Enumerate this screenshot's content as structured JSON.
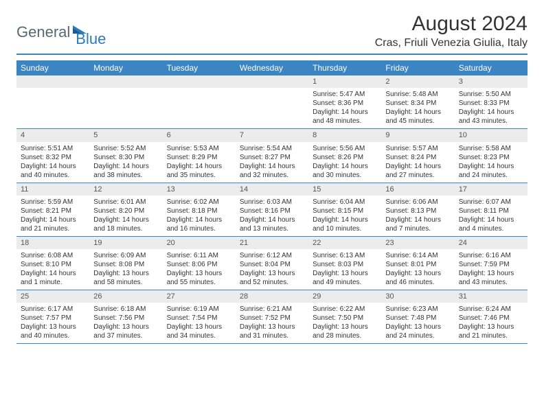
{
  "brand": {
    "part1": "General",
    "part2": "Blue"
  },
  "title": "August 2024",
  "location": "Cras, Friuli Venezia Giulia, Italy",
  "colors": {
    "header_bar": "#3b85c3",
    "daynum_bg": "#ececec",
    "text": "#333333",
    "logo_gray": "#5a6770",
    "logo_blue": "#2b7bbd"
  },
  "day_names": [
    "Sunday",
    "Monday",
    "Tuesday",
    "Wednesday",
    "Thursday",
    "Friday",
    "Saturday"
  ],
  "weeks": [
    [
      null,
      null,
      null,
      null,
      {
        "n": "1",
        "sr": "Sunrise: 5:47 AM",
        "ss": "Sunset: 8:36 PM",
        "d1": "Daylight: 14 hours",
        "d2": "and 48 minutes."
      },
      {
        "n": "2",
        "sr": "Sunrise: 5:48 AM",
        "ss": "Sunset: 8:34 PM",
        "d1": "Daylight: 14 hours",
        "d2": "and 45 minutes."
      },
      {
        "n": "3",
        "sr": "Sunrise: 5:50 AM",
        "ss": "Sunset: 8:33 PM",
        "d1": "Daylight: 14 hours",
        "d2": "and 43 minutes."
      }
    ],
    [
      {
        "n": "4",
        "sr": "Sunrise: 5:51 AM",
        "ss": "Sunset: 8:32 PM",
        "d1": "Daylight: 14 hours",
        "d2": "and 40 minutes."
      },
      {
        "n": "5",
        "sr": "Sunrise: 5:52 AM",
        "ss": "Sunset: 8:30 PM",
        "d1": "Daylight: 14 hours",
        "d2": "and 38 minutes."
      },
      {
        "n": "6",
        "sr": "Sunrise: 5:53 AM",
        "ss": "Sunset: 8:29 PM",
        "d1": "Daylight: 14 hours",
        "d2": "and 35 minutes."
      },
      {
        "n": "7",
        "sr": "Sunrise: 5:54 AM",
        "ss": "Sunset: 8:27 PM",
        "d1": "Daylight: 14 hours",
        "d2": "and 32 minutes."
      },
      {
        "n": "8",
        "sr": "Sunrise: 5:56 AM",
        "ss": "Sunset: 8:26 PM",
        "d1": "Daylight: 14 hours",
        "d2": "and 30 minutes."
      },
      {
        "n": "9",
        "sr": "Sunrise: 5:57 AM",
        "ss": "Sunset: 8:24 PM",
        "d1": "Daylight: 14 hours",
        "d2": "and 27 minutes."
      },
      {
        "n": "10",
        "sr": "Sunrise: 5:58 AM",
        "ss": "Sunset: 8:23 PM",
        "d1": "Daylight: 14 hours",
        "d2": "and 24 minutes."
      }
    ],
    [
      {
        "n": "11",
        "sr": "Sunrise: 5:59 AM",
        "ss": "Sunset: 8:21 PM",
        "d1": "Daylight: 14 hours",
        "d2": "and 21 minutes."
      },
      {
        "n": "12",
        "sr": "Sunrise: 6:01 AM",
        "ss": "Sunset: 8:20 PM",
        "d1": "Daylight: 14 hours",
        "d2": "and 18 minutes."
      },
      {
        "n": "13",
        "sr": "Sunrise: 6:02 AM",
        "ss": "Sunset: 8:18 PM",
        "d1": "Daylight: 14 hours",
        "d2": "and 16 minutes."
      },
      {
        "n": "14",
        "sr": "Sunrise: 6:03 AM",
        "ss": "Sunset: 8:16 PM",
        "d1": "Daylight: 14 hours",
        "d2": "and 13 minutes."
      },
      {
        "n": "15",
        "sr": "Sunrise: 6:04 AM",
        "ss": "Sunset: 8:15 PM",
        "d1": "Daylight: 14 hours",
        "d2": "and 10 minutes."
      },
      {
        "n": "16",
        "sr": "Sunrise: 6:06 AM",
        "ss": "Sunset: 8:13 PM",
        "d1": "Daylight: 14 hours",
        "d2": "and 7 minutes."
      },
      {
        "n": "17",
        "sr": "Sunrise: 6:07 AM",
        "ss": "Sunset: 8:11 PM",
        "d1": "Daylight: 14 hours",
        "d2": "and 4 minutes."
      }
    ],
    [
      {
        "n": "18",
        "sr": "Sunrise: 6:08 AM",
        "ss": "Sunset: 8:10 PM",
        "d1": "Daylight: 14 hours",
        "d2": "and 1 minute."
      },
      {
        "n": "19",
        "sr": "Sunrise: 6:09 AM",
        "ss": "Sunset: 8:08 PM",
        "d1": "Daylight: 13 hours",
        "d2": "and 58 minutes."
      },
      {
        "n": "20",
        "sr": "Sunrise: 6:11 AM",
        "ss": "Sunset: 8:06 PM",
        "d1": "Daylight: 13 hours",
        "d2": "and 55 minutes."
      },
      {
        "n": "21",
        "sr": "Sunrise: 6:12 AM",
        "ss": "Sunset: 8:04 PM",
        "d1": "Daylight: 13 hours",
        "d2": "and 52 minutes."
      },
      {
        "n": "22",
        "sr": "Sunrise: 6:13 AM",
        "ss": "Sunset: 8:03 PM",
        "d1": "Daylight: 13 hours",
        "d2": "and 49 minutes."
      },
      {
        "n": "23",
        "sr": "Sunrise: 6:14 AM",
        "ss": "Sunset: 8:01 PM",
        "d1": "Daylight: 13 hours",
        "d2": "and 46 minutes."
      },
      {
        "n": "24",
        "sr": "Sunrise: 6:16 AM",
        "ss": "Sunset: 7:59 PM",
        "d1": "Daylight: 13 hours",
        "d2": "and 43 minutes."
      }
    ],
    [
      {
        "n": "25",
        "sr": "Sunrise: 6:17 AM",
        "ss": "Sunset: 7:57 PM",
        "d1": "Daylight: 13 hours",
        "d2": "and 40 minutes."
      },
      {
        "n": "26",
        "sr": "Sunrise: 6:18 AM",
        "ss": "Sunset: 7:56 PM",
        "d1": "Daylight: 13 hours",
        "d2": "and 37 minutes."
      },
      {
        "n": "27",
        "sr": "Sunrise: 6:19 AM",
        "ss": "Sunset: 7:54 PM",
        "d1": "Daylight: 13 hours",
        "d2": "and 34 minutes."
      },
      {
        "n": "28",
        "sr": "Sunrise: 6:21 AM",
        "ss": "Sunset: 7:52 PM",
        "d1": "Daylight: 13 hours",
        "d2": "and 31 minutes."
      },
      {
        "n": "29",
        "sr": "Sunrise: 6:22 AM",
        "ss": "Sunset: 7:50 PM",
        "d1": "Daylight: 13 hours",
        "d2": "and 28 minutes."
      },
      {
        "n": "30",
        "sr": "Sunrise: 6:23 AM",
        "ss": "Sunset: 7:48 PM",
        "d1": "Daylight: 13 hours",
        "d2": "and 24 minutes."
      },
      {
        "n": "31",
        "sr": "Sunrise: 6:24 AM",
        "ss": "Sunset: 7:46 PM",
        "d1": "Daylight: 13 hours",
        "d2": "and 21 minutes."
      }
    ]
  ]
}
